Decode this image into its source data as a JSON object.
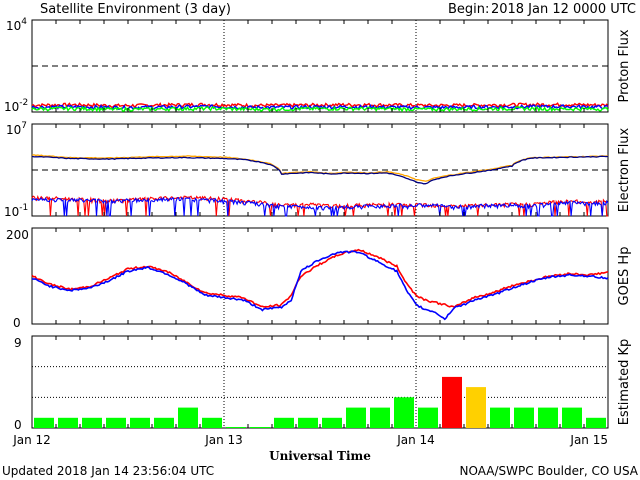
{
  "header": {
    "title": "Satellite Environment (3 day)",
    "begin_label": "Begin:",
    "begin_value": "2018 Jan 12 0000 UTC"
  },
  "footer": {
    "updated": "Updated 2018 Jan 14 23:56:04 UTC",
    "credit": "NOAA/SWPC Boulder, CO USA"
  },
  "xaxis": {
    "label": "Universal Time",
    "ticks": [
      "Jan 12",
      "Jan 13",
      "Jan 14",
      "Jan 15"
    ],
    "range_days": [
      0,
      3
    ]
  },
  "colors": {
    "red": "#ff0000",
    "blue": "#0000ff",
    "green": "#00ff00",
    "orange": "#ffa500",
    "navy": "#000080",
    "kp_quiet": "#00ff00",
    "kp_active": "#ffd000",
    "kp_storm": "#ff0000"
  },
  "chart_data": [
    {
      "type": "line",
      "panel": "proton",
      "ylabel": "Proton Flux",
      "yscale": "log",
      "ylim": [
        0.01,
        10000
      ],
      "ytick_labels": [
        {
          "base": "10",
          "exp": "4"
        },
        {
          "base": "10",
          "exp": "-2"
        }
      ],
      "threshold": 10,
      "series": [
        {
          "color": "red",
          "values": [
            0.028,
            0.03,
            0.026,
            0.029,
            0.031,
            0.027,
            0.028,
            0.03,
            0.029,
            0.027,
            0.028,
            0.03,
            0.031,
            0.028
          ]
        },
        {
          "color": "blue",
          "values": [
            0.021,
            0.022,
            0.02,
            0.021,
            0.023,
            0.02,
            0.021,
            0.022,
            0.021,
            0.02,
            0.021,
            0.022,
            0.023,
            0.021
          ]
        },
        {
          "color": "green",
          "values": [
            0.016,
            0.017,
            0.015,
            0.016,
            0.017,
            0.015,
            0.016,
            0.017,
            0.016,
            0.015,
            0.016,
            0.017,
            0.016,
            0.016
          ]
        }
      ]
    },
    {
      "type": "line",
      "panel": "electron",
      "ylabel": "Electron Flux",
      "yscale": "log",
      "ylim": [
        0.1,
        10000000
      ],
      "ytick_labels": [
        {
          "base": "10",
          "exp": "7"
        },
        {
          "base": "10",
          "exp": "-1"
        }
      ],
      "threshold": 1000,
      "x": [
        0,
        0.2,
        0.4,
        0.6,
        0.8,
        1.0,
        1.1,
        1.2,
        1.25,
        1.3,
        1.35,
        1.45,
        1.55,
        1.65,
        1.75,
        1.85,
        1.9,
        1.95,
        2.0,
        2.05,
        2.1,
        2.2,
        2.3,
        2.4,
        2.5,
        2.6,
        2.7,
        2.8,
        2.9,
        3.0
      ],
      "series": [
        {
          "color": "orange",
          "values": [
            20000,
            12000,
            11000,
            14000,
            16000,
            13000,
            9000,
            5000,
            3000,
            500,
            600,
            700,
            500,
            650,
            550,
            700,
            500,
            300,
            150,
            100,
            200,
            400,
            700,
            1200,
            2500,
            12000,
            13000,
            14000,
            15000,
            17000
          ]
        },
        {
          "color": "navy",
          "values": [
            15000,
            10000,
            9000,
            11000,
            12000,
            10000,
            8000,
            4500,
            2500,
            450,
            500,
            600,
            450,
            550,
            500,
            550,
            350,
            180,
            90,
            60,
            150,
            350,
            600,
            1000,
            2200,
            11000,
            12000,
            13000,
            14000,
            15000
          ]
        },
        {
          "color": "red",
          "values": [
            4,
            3,
            2,
            3,
            4,
            3,
            2,
            1.5,
            1,
            0.8,
            0.9,
            1,
            0.7,
            0.8,
            0.9,
            1,
            1,
            0.8,
            0.9,
            1,
            0.9,
            0.7,
            0.8,
            0.9,
            1,
            1,
            1.5,
            2,
            1.5,
            2
          ]
        },
        {
          "color": "blue",
          "values": [
            3,
            2.5,
            2,
            2.5,
            3,
            2,
            1.5,
            1,
            0.8,
            0.6,
            0.7,
            0.6,
            0.5,
            0.6,
            0.7,
            0.8,
            0.9,
            0.7,
            0.8,
            0.9,
            0.8,
            0.6,
            0.7,
            0.8,
            0.9,
            0.8,
            1,
            1.5,
            1.2,
            1.5
          ]
        }
      ]
    },
    {
      "type": "line",
      "panel": "hp",
      "ylabel": "GOES Hp",
      "ylim": [
        0,
        200
      ],
      "ytick_labels": [
        "200",
        "0"
      ],
      "x": [
        0,
        0.1,
        0.2,
        0.3,
        0.4,
        0.5,
        0.6,
        0.7,
        0.8,
        0.9,
        1.0,
        1.1,
        1.2,
        1.3,
        1.35,
        1.4,
        1.5,
        1.6,
        1.7,
        1.8,
        1.9,
        1.95,
        2.0,
        2.05,
        2.1,
        2.15,
        2.2,
        2.25,
        2.3,
        2.4,
        2.5,
        2.6,
        2.7,
        2.8,
        2.9,
        3.0
      ],
      "series": [
        {
          "color": "red",
          "values": [
            100,
            82,
            72,
            78,
            95,
            115,
            120,
            110,
            88,
            65,
            60,
            55,
            35,
            40,
            60,
            100,
            125,
            145,
            155,
            140,
            120,
            85,
            60,
            50,
            45,
            40,
            35,
            45,
            55,
            65,
            80,
            90,
            100,
            105,
            102,
            108
          ]
        },
        {
          "color": "blue",
          "values": [
            95,
            78,
            70,
            75,
            90,
            110,
            118,
            105,
            85,
            60,
            55,
            50,
            30,
            35,
            50,
            110,
            135,
            150,
            150,
            130,
            110,
            70,
            40,
            30,
            25,
            10,
            35,
            40,
            50,
            60,
            75,
            88,
            98,
            102,
            100,
            95
          ]
        }
      ]
    },
    {
      "type": "bar",
      "panel": "kp",
      "ylabel": "Estimated Kp",
      "ylim": [
        0,
        9
      ],
      "ytick_labels": [
        "9",
        "0"
      ],
      "values": [
        1,
        1,
        1,
        1,
        1,
        1,
        2,
        1,
        0,
        0,
        1,
        1,
        1,
        2,
        2,
        3,
        2,
        5,
        4,
        2,
        2,
        2,
        2,
        1
      ]
    }
  ]
}
